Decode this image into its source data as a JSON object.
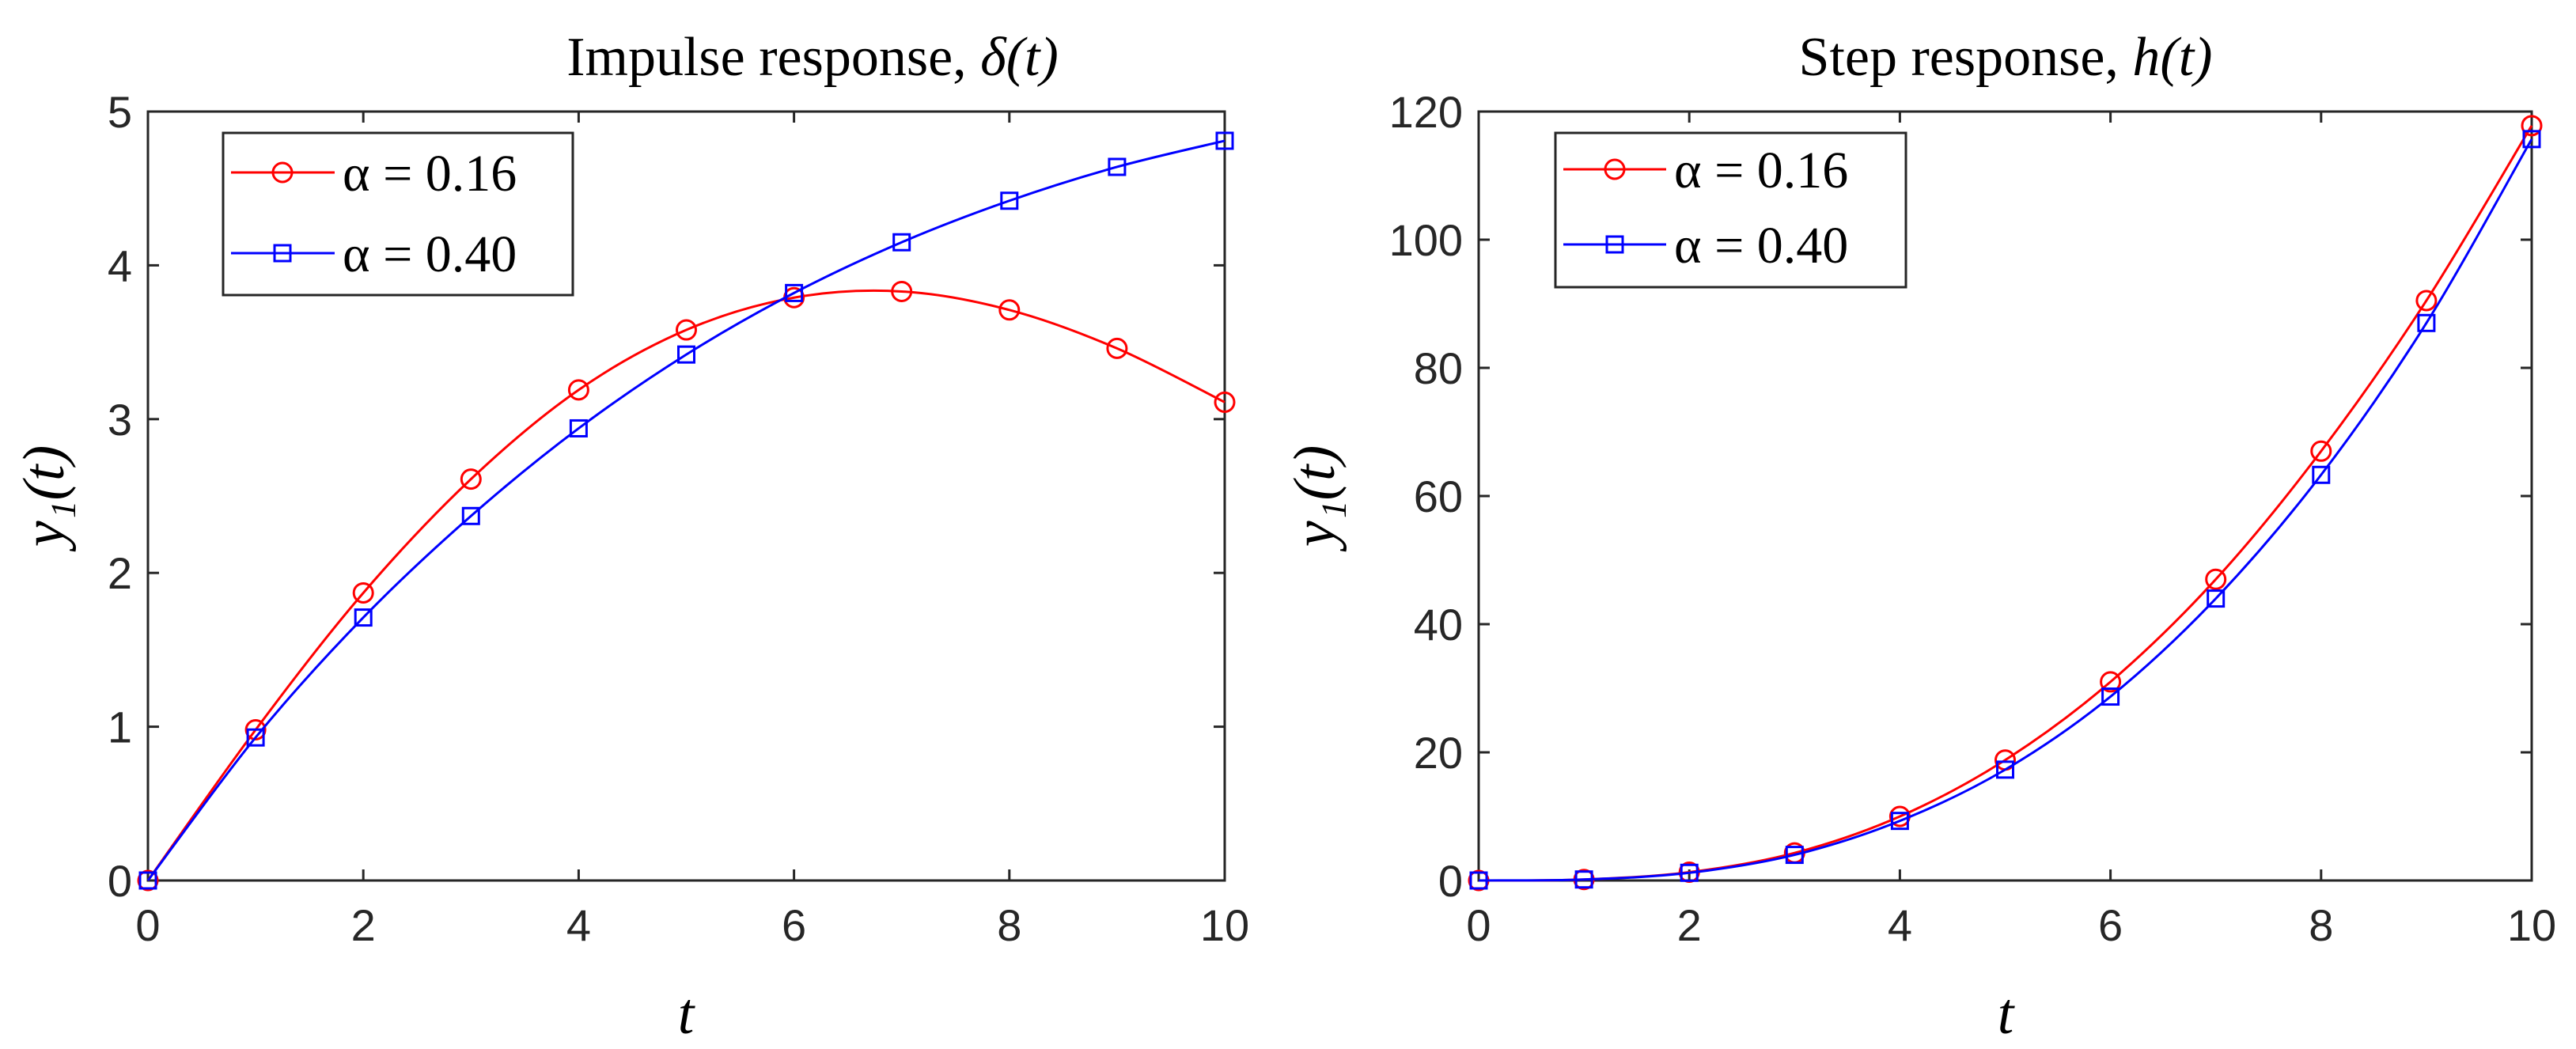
{
  "chart_data": [
    {
      "type": "line",
      "title_prefix": "Impulse response,",
      "title_math": "δ(t)",
      "xlabel": "t",
      "ylabel": "y₁(t)",
      "xlim": [
        0,
        10
      ],
      "ylim": [
        0,
        5
      ],
      "xticks": [
        0,
        2,
        4,
        6,
        8,
        10
      ],
      "yticks": [
        0,
        1,
        2,
        3,
        4,
        5
      ],
      "legend_location": "top-left",
      "x": [
        0,
        1,
        2,
        3,
        4,
        5,
        6,
        7,
        8,
        9,
        10
      ],
      "series": [
        {
          "name": "α = 0.16",
          "label_math": "α = 0.16",
          "color": "#ff0000",
          "marker": "circle",
          "values": [
            0,
            0.98,
            1.87,
            2.61,
            3.19,
            3.58,
            3.79,
            3.83,
            3.71,
            3.46,
            3.11
          ]
        },
        {
          "name": "α = 0.40",
          "label_math": "α = 0.40",
          "color": "#0000ff",
          "marker": "square",
          "values": [
            0,
            0.93,
            1.71,
            2.37,
            2.94,
            3.42,
            3.82,
            4.15,
            4.42,
            4.64,
            4.81
          ]
        }
      ]
    },
    {
      "type": "line",
      "title_prefix": "Step response,",
      "title_math": "h(t)",
      "xlabel": "t",
      "ylabel": "y₁(t)",
      "xlim": [
        0,
        10
      ],
      "ylim": [
        0,
        120
      ],
      "xticks": [
        0,
        2,
        4,
        6,
        8,
        10
      ],
      "yticks": [
        0,
        20,
        40,
        60,
        80,
        100,
        120
      ],
      "legend_location": "top-left",
      "x": [
        0,
        1,
        2,
        3,
        4,
        5,
        6,
        7,
        8,
        9,
        10
      ],
      "series": [
        {
          "name": "α = 0.16",
          "label_math": "α = 0.16",
          "color": "#ff0000",
          "marker": "circle",
          "values": [
            0,
            0.16,
            1.3,
            4.3,
            10.0,
            18.8,
            31.0,
            47.0,
            67.0,
            90.5,
            117.8
          ]
        },
        {
          "name": "α = 0.40",
          "label_math": "α = 0.40",
          "color": "#0000ff",
          "marker": "square",
          "values": [
            0,
            0.16,
            1.2,
            4.0,
            9.3,
            17.3,
            28.7,
            44.0,
            63.3,
            87.0,
            115.7
          ]
        }
      ]
    }
  ]
}
